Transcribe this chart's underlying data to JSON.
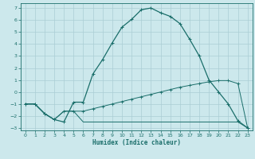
{
  "xlabel": "Humidex (Indice chaleur)",
  "bg_color": "#cce8ec",
  "grid_color": "#aacdd4",
  "line_color": "#1a6e6a",
  "xlim": [
    -0.5,
    23.5
  ],
  "ylim": [
    -3.2,
    7.4
  ],
  "xticks": [
    0,
    1,
    2,
    3,
    4,
    5,
    6,
    7,
    8,
    9,
    10,
    11,
    12,
    13,
    14,
    15,
    16,
    17,
    18,
    19,
    20,
    21,
    22,
    23
  ],
  "yticks": [
    -3,
    -2,
    -1,
    0,
    1,
    2,
    3,
    4,
    5,
    6,
    7
  ],
  "line1_x": [
    0,
    1,
    2,
    3,
    4,
    5,
    6,
    7,
    8,
    9,
    10,
    11,
    12,
    13,
    14,
    15,
    16,
    17,
    18,
    19,
    20,
    21,
    22,
    23
  ],
  "line1_y": [
    -1,
    -1,
    -1.8,
    -2.3,
    -2.5,
    -0.85,
    -0.85,
    1.5,
    2.7,
    4.1,
    5.4,
    6.05,
    6.85,
    7.0,
    6.6,
    6.3,
    5.7,
    4.4,
    3.0,
    1.0,
    0.0,
    -1.0,
    -2.4,
    -3.0
  ],
  "line2_x": [
    0,
    1,
    2,
    3,
    4,
    5,
    6,
    7,
    8,
    9,
    10,
    11,
    12,
    13,
    14,
    15,
    16,
    17,
    18,
    19,
    20,
    21,
    22,
    23
  ],
  "line2_y": [
    -1,
    -1,
    -1.8,
    -2.3,
    -1.6,
    -1.6,
    -1.6,
    -1.4,
    -1.2,
    -1.0,
    -0.8,
    -0.6,
    -0.4,
    -0.2,
    0.0,
    0.2,
    0.4,
    0.55,
    0.7,
    0.85,
    0.95,
    0.95,
    0.7,
    -3.0
  ],
  "line3_x": [
    0,
    1,
    2,
    3,
    4,
    5,
    6,
    7,
    8,
    9,
    10,
    11,
    12,
    13,
    14,
    15,
    16,
    17,
    18,
    19,
    20,
    21,
    22,
    23
  ],
  "line3_y": [
    -1,
    -1,
    -1.8,
    -2.3,
    -1.6,
    -1.6,
    -2.5,
    -2.5,
    -2.5,
    -2.5,
    -2.5,
    -2.5,
    -2.5,
    -2.5,
    -2.5,
    -2.5,
    -2.5,
    -2.5,
    -2.5,
    -2.5,
    -2.5,
    -2.5,
    -2.5,
    -3.0
  ]
}
